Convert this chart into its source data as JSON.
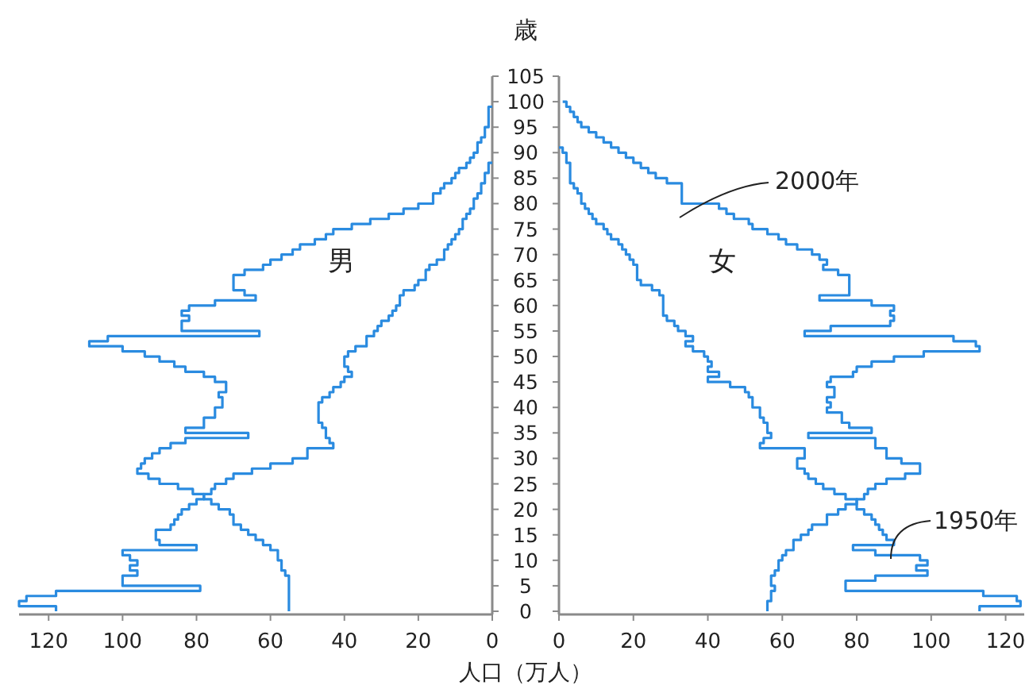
{
  "chart_data": [
    {
      "type": "step",
      "orientation": "horizontal",
      "ylabel": "歳",
      "xlabel": "人口（万人）",
      "annotations": [
        "男"
      ],
      "xlim": [
        128,
        0
      ],
      "xticks": [
        120,
        100,
        80,
        60,
        40,
        20,
        0
      ],
      "ylim": [
        0,
        105
      ],
      "yticks": [
        0,
        5,
        10,
        15,
        20,
        25,
        30,
        35,
        40,
        45,
        50,
        55,
        60,
        65,
        70,
        75,
        80,
        85,
        90,
        95,
        100,
        105
      ],
      "series": [
        {
          "color": "#2a8be0",
          "x": [
            0,
            1,
            2,
            3,
            4,
            5,
            6,
            7,
            8,
            9,
            10,
            11,
            12,
            13,
            14,
            15,
            16,
            17,
            18,
            19,
            20,
            21,
            22,
            23,
            24,
            25,
            26,
            27,
            28,
            29,
            30,
            31,
            32,
            33,
            34,
            35,
            36,
            37,
            38,
            39,
            40,
            41,
            42,
            43,
            44,
            45,
            46,
            47,
            48,
            49,
            50,
            51,
            52,
            53,
            54,
            55,
            56,
            57,
            58,
            59,
            60,
            61,
            62,
            63,
            64,
            65,
            66,
            67,
            68,
            69,
            70,
            71,
            72,
            73,
            74,
            75,
            76,
            77,
            78,
            79,
            80,
            81,
            82,
            83,
            84,
            85,
            86,
            87,
            88,
            89,
            90,
            91,
            92,
            93,
            94,
            95,
            96,
            97,
            98,
            99
          ],
          "values": [
            55,
            55,
            55,
            55,
            55,
            55,
            55,
            56,
            57,
            57,
            58,
            58,
            60,
            62,
            64,
            66,
            68,
            70,
            70,
            71,
            74,
            76,
            78,
            81,
            85,
            90,
            93,
            96,
            95,
            94,
            92,
            90,
            87,
            83,
            66,
            83,
            78,
            78,
            75,
            75,
            73,
            73,
            74,
            72,
            72,
            75,
            78,
            83,
            86,
            90,
            94,
            100,
            109,
            104,
            63,
            84,
            84,
            82,
            84,
            82,
            75,
            64,
            67,
            70,
            70,
            70,
            67,
            62,
            60,
            57,
            54,
            52,
            48,
            45,
            43,
            38,
            33,
            28,
            24,
            20,
            16,
            16,
            14,
            13,
            11,
            10,
            9,
            7,
            6,
            5,
            4,
            4,
            3,
            2,
            2,
            1,
            1,
            1,
            1,
            0
          ]
        },
        {
          "color": "#2a8be0",
          "x": [
            0,
            1,
            2,
            3,
            4,
            5,
            6,
            7,
            8,
            9,
            10,
            11,
            12,
            13,
            14,
            15,
            16,
            17,
            18,
            19,
            20,
            21,
            22,
            23,
            24,
            25,
            26,
            27,
            28,
            29,
            30,
            31,
            32,
            33,
            34,
            35,
            36,
            37,
            38,
            39,
            40,
            41,
            42,
            43,
            44,
            45,
            46,
            47,
            48,
            49,
            50,
            51,
            52,
            53,
            54,
            55,
            56,
            57,
            58,
            59,
            60,
            61,
            62,
            63,
            64,
            65,
            66,
            67,
            68,
            69,
            70,
            71,
            72,
            73,
            74,
            75,
            76,
            77,
            78,
            79,
            80,
            81,
            82,
            83,
            84,
            85,
            86,
            87,
            88
          ],
          "values": [
            118,
            128,
            126,
            118,
            79,
            100,
            100,
            96,
            98,
            96,
            98,
            100,
            80,
            90,
            91,
            91,
            87,
            86,
            85,
            84,
            82,
            80,
            78,
            76,
            75,
            72,
            70,
            65,
            60,
            54,
            50,
            50,
            43,
            44,
            45,
            45,
            46,
            47,
            47,
            47,
            47,
            46,
            44,
            43,
            41,
            40,
            38,
            39,
            40,
            40,
            39,
            37,
            34,
            34,
            32,
            31,
            30,
            28,
            27,
            26,
            25,
            25,
            24,
            21,
            20,
            18,
            18,
            17,
            15,
            13,
            13,
            12,
            11,
            10,
            9,
            8,
            8,
            7,
            6,
            5,
            5,
            4,
            3,
            3,
            2,
            2,
            1,
            1,
            0
          ]
        }
      ]
    },
    {
      "type": "step",
      "orientation": "horizontal",
      "annotations": [
        "女"
      ],
      "tick_labels": "x",
      "xlim": [
        0,
        125
      ],
      "xticks": [
        0,
        20,
        40,
        60,
        80,
        100,
        120
      ],
      "ylim": [
        0,
        105
      ],
      "series": [
        {
          "name": "2000年",
          "color": "#2a8be0",
          "x": [
            0,
            1,
            2,
            3,
            4,
            5,
            6,
            7,
            8,
            9,
            10,
            11,
            12,
            13,
            14,
            15,
            16,
            17,
            18,
            19,
            20,
            21,
            22,
            23,
            24,
            25,
            26,
            27,
            28,
            29,
            30,
            31,
            32,
            33,
            34,
            35,
            36,
            37,
            38,
            39,
            40,
            41,
            42,
            43,
            44,
            45,
            46,
            47,
            48,
            49,
            50,
            51,
            52,
            53,
            54,
            55,
            56,
            57,
            58,
            59,
            60,
            61,
            62,
            63,
            64,
            65,
            66,
            67,
            68,
            69,
            70,
            71,
            72,
            73,
            74,
            75,
            76,
            77,
            78,
            79,
            80,
            81,
            82,
            83,
            84,
            85,
            86,
            87,
            88,
            89,
            90,
            91,
            92,
            93,
            94,
            95,
            96,
            97,
            98,
            99,
            100
          ],
          "values": [
            56,
            56,
            57,
            57,
            58,
            57,
            57,
            58,
            59,
            59,
            60,
            61,
            63,
            63,
            65,
            67,
            68,
            72,
            72,
            75,
            77,
            80,
            82,
            83,
            85,
            88,
            93,
            97,
            97,
            92,
            88,
            88,
            85,
            85,
            67,
            84,
            78,
            76,
            76,
            72,
            73,
            72,
            74,
            74,
            72,
            73,
            79,
            80,
            84,
            90,
            98,
            113,
            112,
            106,
            66,
            73,
            89,
            90,
            89,
            90,
            84,
            70,
            78,
            78,
            78,
            78,
            75,
            71,
            72,
            70,
            68,
            64,
            61,
            59,
            56,
            52,
            51,
            47,
            45,
            43,
            33,
            33,
            33,
            33,
            29,
            26,
            24,
            22,
            20,
            18,
            16,
            14,
            12,
            10,
            8,
            6,
            5,
            4,
            3,
            2,
            1
          ]
        },
        {
          "name": "1950年",
          "color": "#2a8be0",
          "x": [
            0,
            1,
            2,
            3,
            4,
            5,
            6,
            7,
            8,
            9,
            10,
            11,
            12,
            13,
            14,
            15,
            16,
            17,
            18,
            19,
            20,
            21,
            22,
            23,
            24,
            25,
            26,
            27,
            28,
            29,
            30,
            31,
            32,
            33,
            34,
            35,
            36,
            37,
            38,
            39,
            40,
            41,
            42,
            43,
            44,
            45,
            46,
            47,
            48,
            49,
            50,
            51,
            52,
            53,
            54,
            55,
            56,
            57,
            58,
            59,
            60,
            61,
            62,
            63,
            64,
            65,
            66,
            67,
            68,
            69,
            70,
            71,
            72,
            73,
            74,
            75,
            76,
            77,
            78,
            79,
            80,
            81,
            82,
            83,
            84,
            85,
            86,
            87,
            88,
            89,
            90,
            91
          ],
          "values": [
            113,
            124,
            123,
            114,
            77,
            77,
            85,
            99,
            96,
            99,
            97,
            85,
            79,
            90,
            88,
            87,
            86,
            85,
            84,
            82,
            80,
            80,
            77,
            74,
            71,
            69,
            67,
            66,
            64,
            64,
            66,
            66,
            54,
            55,
            57,
            56,
            56,
            55,
            54,
            54,
            52,
            52,
            51,
            50,
            46,
            40,
            43,
            40,
            41,
            40,
            39,
            36,
            34,
            36,
            34,
            32,
            31,
            29,
            28,
            28,
            28,
            28,
            27,
            25,
            22,
            21,
            21,
            21,
            20,
            19,
            18,
            17,
            16,
            14,
            13,
            12,
            10,
            9,
            8,
            7,
            6,
            6,
            5,
            4,
            3,
            3,
            3,
            3,
            2,
            2,
            1,
            0
          ]
        }
      ]
    }
  ]
}
